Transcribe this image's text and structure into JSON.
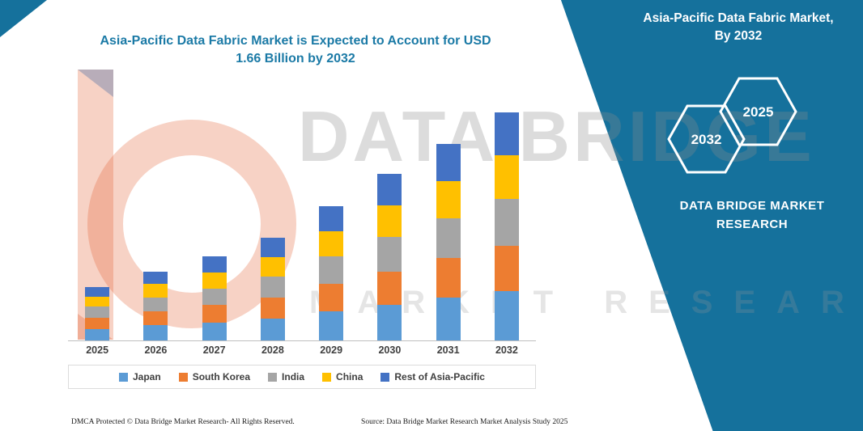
{
  "title": {
    "line1": "Asia-Pacific Data Fabric Market is Expected to Account for USD",
    "line2": "1.66 Billion by 2032"
  },
  "panel": {
    "bg_color": "#15719c",
    "heading_line1": "Asia-Pacific Data Fabric Market,",
    "heading_line2": "By 2032",
    "hexagons": [
      {
        "label": "2032"
      },
      {
        "label": "2025"
      }
    ],
    "brand_line1": "DATA BRIDGE MARKET",
    "brand_line2": "RESEARCH"
  },
  "watermark": {
    "line1": "DATA BRIDGE",
    "line2": "MARKET RESEARCH"
  },
  "footer": {
    "left": "DMCA Protected © Data Bridge Market Research- All Rights Reserved.",
    "right": "Source: Data Bridge Market Research Market Analysis Study 2025"
  },
  "chart_data": {
    "type": "bar",
    "stacked": true,
    "title": "Asia-Pacific Data Fabric Market is Expected to Account for USD 1.66 Billion by 2032",
    "unit": "USD Billion",
    "xlabel": "",
    "ylabel": "",
    "grid": false,
    "legend_position": "bottom",
    "categories": [
      "2025",
      "2026",
      "2027",
      "2028",
      "2029",
      "2030",
      "2031",
      "2032"
    ],
    "series": [
      {
        "name": "Japan",
        "color": "#5B9BD5",
        "values": [
          0.08,
          0.11,
          0.13,
          0.16,
          0.21,
          0.26,
          0.31,
          0.36
        ]
      },
      {
        "name": "South Korea",
        "color": "#ED7D31",
        "values": [
          0.08,
          0.1,
          0.13,
          0.15,
          0.2,
          0.24,
          0.29,
          0.33
        ]
      },
      {
        "name": "India",
        "color": "#A5A5A5",
        "values": [
          0.08,
          0.1,
          0.12,
          0.15,
          0.2,
          0.25,
          0.29,
          0.34
        ]
      },
      {
        "name": "China",
        "color": "#FFC000",
        "values": [
          0.07,
          0.1,
          0.12,
          0.14,
          0.18,
          0.23,
          0.27,
          0.32
        ]
      },
      {
        "name": "Rest of Asia-Pacific",
        "color": "#4472C4",
        "values": [
          0.07,
          0.09,
          0.12,
          0.14,
          0.18,
          0.23,
          0.27,
          0.31
        ]
      }
    ],
    "totals": [
      0.38,
      0.5,
      0.62,
      0.74,
      0.97,
      1.21,
      1.43,
      1.66
    ],
    "ylim": [
      0,
      1.75
    ]
  }
}
